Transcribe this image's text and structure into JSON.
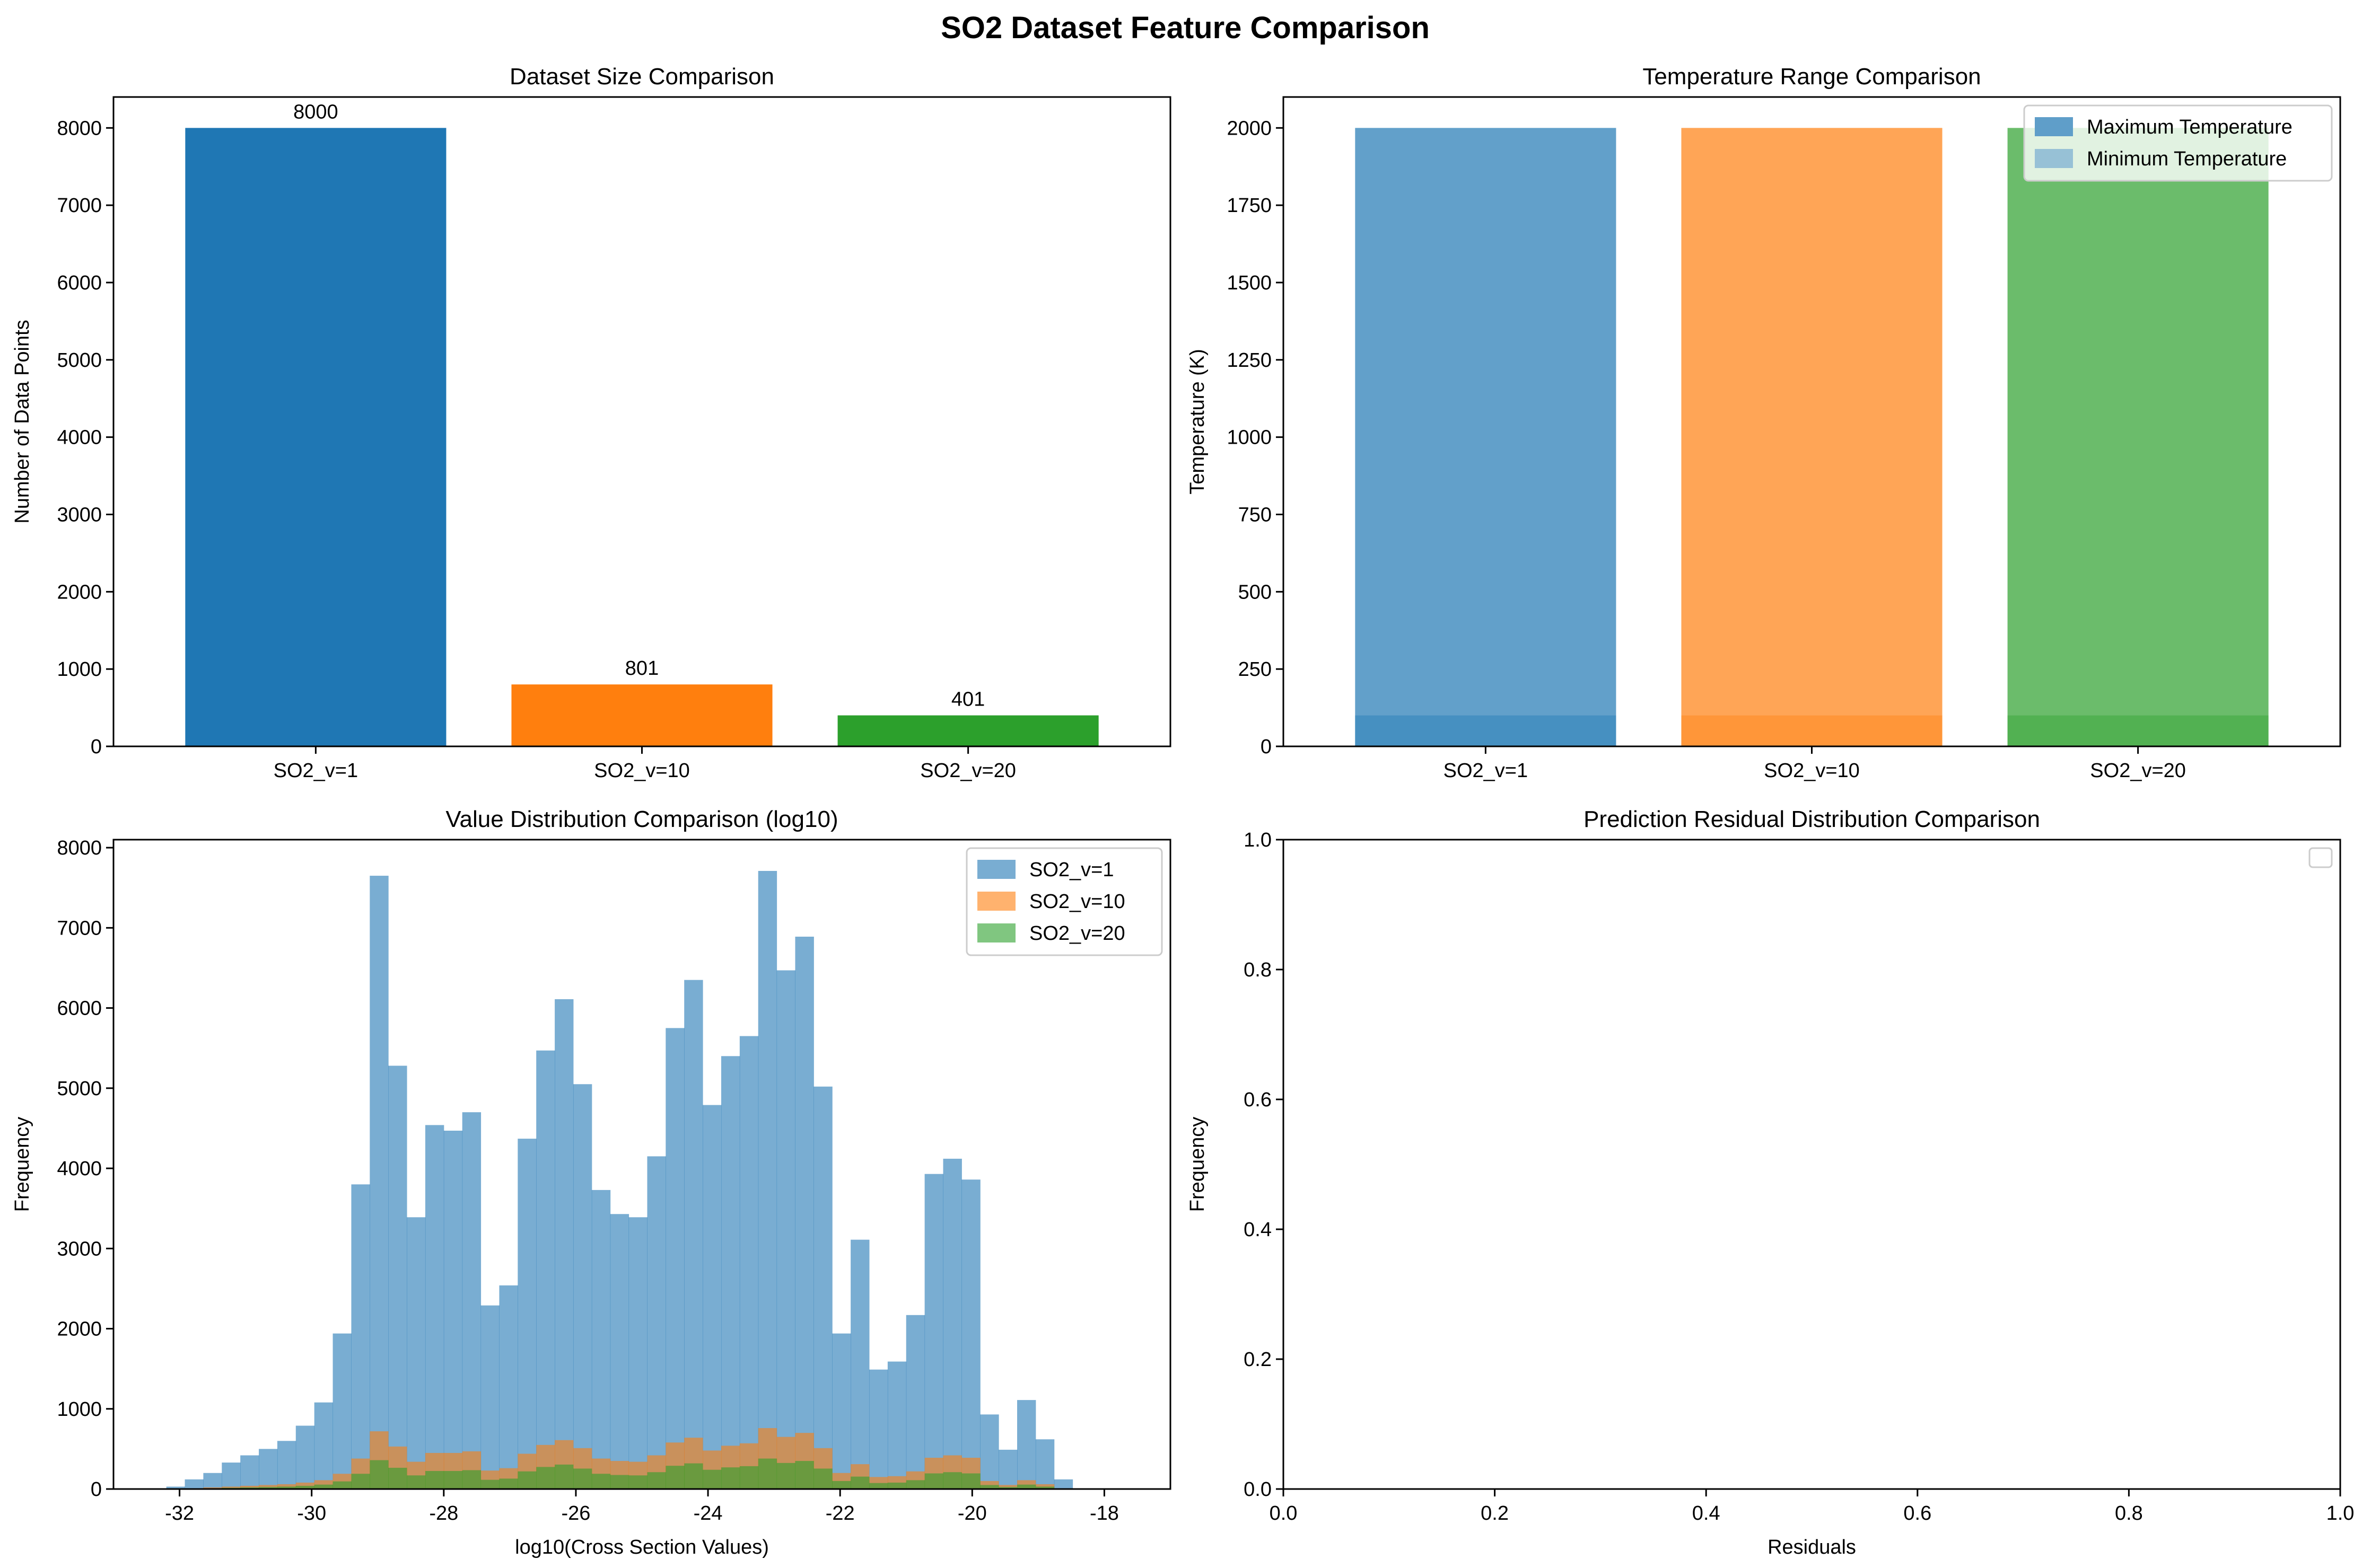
{
  "figure": {
    "title": "SO2 Dataset Feature Comparison"
  },
  "chart_data": [
    {
      "type": "bar",
      "title": "Dataset Size Comparison",
      "xlabel": "",
      "ylabel": "Number of Data Points",
      "categories": [
        "SO2_v=1",
        "SO2_v=10",
        "SO2_v=20"
      ],
      "values": [
        8000,
        801,
        401
      ],
      "data_labels": [
        "8000",
        "801",
        "401"
      ],
      "colors": [
        "#1f77b4",
        "#ff7f0e",
        "#2ca02c"
      ],
      "ylim": [
        0,
        8400
      ],
      "yticks": [
        0,
        1000,
        2000,
        3000,
        4000,
        5000,
        6000,
        7000,
        8000
      ],
      "grid": false
    },
    {
      "type": "bar",
      "title": "Temperature Range Comparison",
      "xlabel": "",
      "ylabel": "Temperature (K)",
      "categories": [
        "SO2_v=1",
        "SO2_v=10",
        "SO2_v=20"
      ],
      "series": [
        {
          "name": "Maximum Temperature",
          "values": [
            2000,
            2000,
            2000
          ],
          "alpha": 0.7
        },
        {
          "name": "Minimum Temperature",
          "values": [
            100,
            100,
            100
          ],
          "alpha": 0.4
        }
      ],
      "colors": [
        "#1f77b4",
        "#ff7f0e",
        "#2ca02c"
      ],
      "legend_colors": [
        "#5f9ec9",
        "#97c1d6"
      ],
      "ylim": [
        0,
        2100
      ],
      "yticks": [
        0,
        250,
        500,
        750,
        1000,
        1250,
        1500,
        1750,
        2000
      ],
      "legend": "top-right",
      "grid": false
    },
    {
      "type": "histogram",
      "title": "Value Distribution Comparison (log10)",
      "xlabel": "log10(Cross Section Values)",
      "ylabel": "Frequency",
      "bin_start": -32.2,
      "bin_width": 0.28,
      "xlim": [
        -33.0,
        -17.0
      ],
      "ylim": [
        0,
        8100
      ],
      "xticks": [
        -32,
        -30,
        -28,
        -26,
        -24,
        -22,
        -20,
        -18
      ],
      "yticks": [
        0,
        1000,
        2000,
        3000,
        4000,
        5000,
        6000,
        7000,
        8000
      ],
      "legend": "top-right",
      "grid": false,
      "series": [
        {
          "name": "SO2_v=1",
          "color": "#1f77b4",
          "alpha": 0.6,
          "counts": [
            30,
            120,
            200,
            330,
            420,
            500,
            600,
            790,
            1080,
            1940,
            3800,
            7650,
            5280,
            3390,
            4540,
            4470,
            4700,
            2290,
            2540,
            4370,
            5470,
            6110,
            5050,
            3730,
            3430,
            3390,
            4150,
            5750,
            6350,
            4790,
            5400,
            5650,
            7710,
            6470,
            6890,
            5020,
            1940,
            3110,
            1490,
            1590,
            2170,
            3930,
            4120,
            3860,
            930,
            490,
            1110,
            620,
            120
          ]
        },
        {
          "name": "SO2_v=10",
          "color": "#ff7f0e",
          "alpha": 0.6,
          "counts": [
            0,
            10,
            20,
            30,
            40,
            50,
            60,
            80,
            110,
            190,
            380,
            720,
            530,
            340,
            450,
            450,
            470,
            230,
            260,
            440,
            550,
            610,
            510,
            380,
            350,
            340,
            420,
            580,
            640,
            480,
            540,
            570,
            760,
            650,
            700,
            510,
            200,
            310,
            150,
            160,
            220,
            390,
            420,
            390,
            100,
            50,
            110,
            60,
            10
          ]
        },
        {
          "name": "SO2_v=20",
          "color": "#2ca02c",
          "alpha": 0.6,
          "counts": [
            0,
            5,
            10,
            15,
            20,
            25,
            30,
            40,
            55,
            95,
            190,
            360,
            265,
            170,
            225,
            225,
            235,
            115,
            130,
            220,
            275,
            305,
            255,
            190,
            175,
            170,
            210,
            290,
            320,
            240,
            270,
            285,
            380,
            325,
            350,
            255,
            100,
            155,
            75,
            80,
            110,
            195,
            210,
            195,
            50,
            25,
            55,
            30,
            5
          ]
        }
      ]
    },
    {
      "type": "histogram",
      "title": "Prediction Residual Distribution Comparison",
      "xlabel": "Residuals",
      "ylabel": "Frequency",
      "xlim": [
        0,
        1
      ],
      "ylim": [
        0,
        1
      ],
      "xticks": [
        "0.0",
        "0.2",
        "0.4",
        "0.6",
        "0.8",
        "1.0"
      ],
      "yticks": [
        "0.0",
        "0.2",
        "0.4",
        "0.6",
        "0.8",
        "1.0"
      ],
      "series": [],
      "legend": "top-right",
      "grid": false
    }
  ]
}
